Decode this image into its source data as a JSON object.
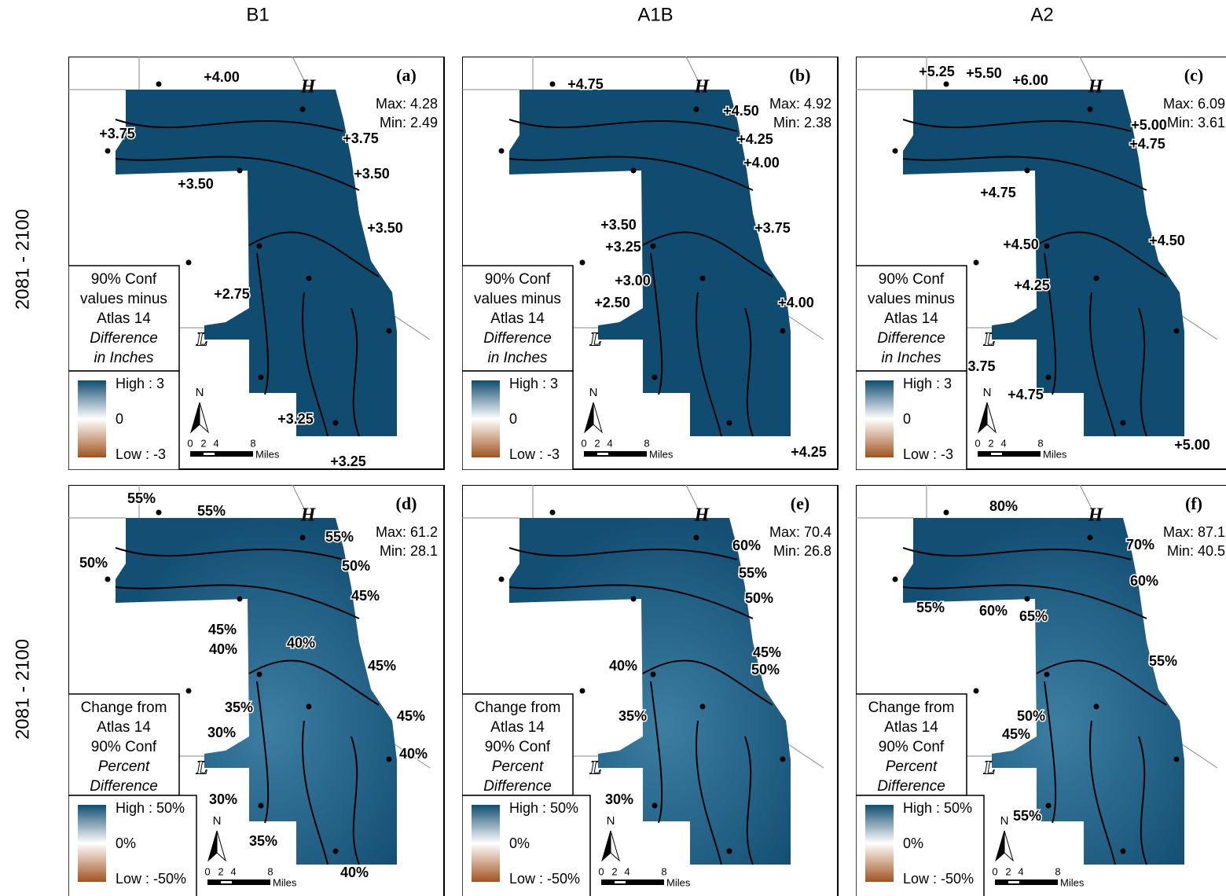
{
  "columns": [
    "B1",
    "A1B",
    "A2"
  ],
  "rows": [
    {
      "label": "2081 - 2100",
      "legend_title": [
        "90% Conf",
        "values minus",
        "Atlas 14",
        "Difference",
        "in Inches"
      ],
      "legend_scale": [
        "High : 3",
        "0",
        "Low : -3"
      ]
    },
    {
      "label": "2081 - 2100",
      "legend_title": [
        "Change from",
        "Atlas 14",
        "90% Conf",
        "Percent",
        "Difference"
      ],
      "legend_scale": [
        "High : 50%",
        "0%",
        "Low : -50%"
      ]
    }
  ],
  "map_labels": {
    "high_point": "H",
    "low_point": "L",
    "north": "N",
    "scale": [
      "0",
      "2",
      "4",
      "8"
    ],
    "scale_unit": "Miles"
  },
  "panels": [
    {
      "id": "(a)",
      "max": "Max: 4.28",
      "min": "Min: 2.49",
      "contours": [
        "+4.00",
        "+3.75",
        "+3.75",
        "+3.50",
        "+3.50",
        "+3.50",
        "+2.75",
        "+3.25",
        "+3.25"
      ]
    },
    {
      "id": "(b)",
      "max": "Max: 4.92",
      "min": "Min: 2.38",
      "contours": [
        "+4.75",
        "+4.50",
        "+4.25",
        "+4.00",
        "+3.75",
        "+3.50",
        "+3.25",
        "+3.00",
        "+2.50",
        "+4.00",
        "+4.25"
      ]
    },
    {
      "id": "(c)",
      "max": "Max: 6.09",
      "min": "Min: 3.61",
      "contours": [
        "+5.25",
        "+5.50",
        "+6.00",
        "+5.00",
        "+4.75",
        "+4.75",
        "+4.50",
        "+4.50",
        "+4.25",
        "3.75",
        "+4.75",
        "+5.00"
      ]
    },
    {
      "id": "(d)",
      "max": "Max: 61.2",
      "min": "Min: 28.1",
      "contours": [
        "55%",
        "55%",
        "55%",
        "50%",
        "50%",
        "45%",
        "45%",
        "40%",
        "40%",
        "45%",
        "35%",
        "30%",
        "45%",
        "40%",
        "30%",
        "35%",
        "40%"
      ]
    },
    {
      "id": "(e)",
      "max": "Max: 70.4",
      "min": "Min: 26.8",
      "contours": [
        "60%",
        "55%",
        "50%",
        "45%",
        "50%",
        "40%",
        "35%",
        "30%"
      ]
    },
    {
      "id": "(f)",
      "max": "Max: 87.1",
      "min": "Min: 40.5",
      "contours": [
        "80%",
        "70%",
        "60%",
        "55%",
        "60%",
        "65%",
        "55%",
        "50%",
        "45%",
        "55%"
      ]
    }
  ]
}
